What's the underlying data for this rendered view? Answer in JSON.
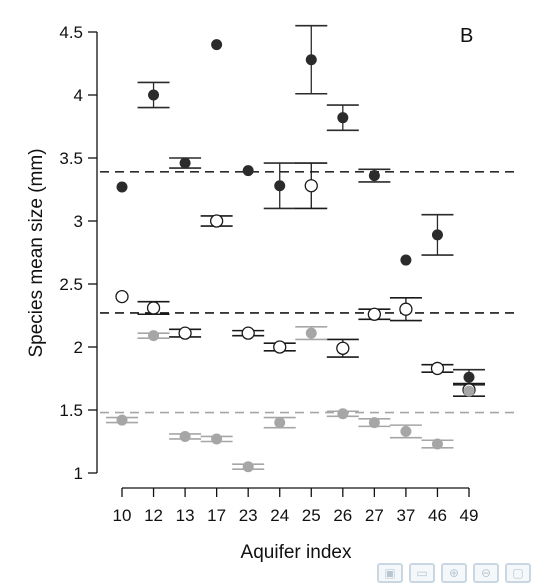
{
  "chart_data": {
    "type": "scatter",
    "panel_label": "B",
    "xlabel": "Aquifer index",
    "ylabel": "Species mean size (mm)",
    "categories": [
      "10",
      "12",
      "13",
      "17",
      "23",
      "24",
      "25",
      "26",
      "27",
      "37",
      "46",
      "49"
    ],
    "ylim": [
      1,
      4.5
    ],
    "yticks": [
      1,
      1.5,
      2,
      2.5,
      3,
      3.5,
      4,
      4.5
    ],
    "ytick_labels": [
      "1",
      "1.5",
      "2",
      "2.5",
      "3",
      "3.5",
      "4",
      "4.5"
    ],
    "grid": false,
    "legend": "none",
    "series": [
      {
        "style": "filled-black",
        "color": "#2b2b2b",
        "mean_line": 3.39,
        "points": [
          {
            "x": "10",
            "y": 3.27,
            "err": null
          },
          {
            "x": "12",
            "y": 4.0,
            "err": 0.1
          },
          {
            "x": "13",
            "y": 3.46,
            "err": 0.04
          },
          {
            "x": "17",
            "y": 4.4,
            "err": null
          },
          {
            "x": "23",
            "y": 3.4,
            "err": null
          },
          {
            "x": "24",
            "y": 3.28,
            "err": 0.18
          },
          {
            "x": "25",
            "y": 4.28,
            "err": 0.27
          },
          {
            "x": "26",
            "y": 3.82,
            "err": 0.1
          },
          {
            "x": "27",
            "y": 3.36,
            "err": 0.05
          },
          {
            "x": "37",
            "y": 2.69,
            "err": null
          },
          {
            "x": "46",
            "y": 2.89,
            "err": 0.16
          },
          {
            "x": "49",
            "y": 1.76,
            "err": 0.06
          }
        ]
      },
      {
        "style": "open-circle",
        "color": "#1a1a1a",
        "mean_line": 2.27,
        "points": [
          {
            "x": "10",
            "y": 2.4,
            "err": null
          },
          {
            "x": "12",
            "y": 2.31,
            "err": 0.05
          },
          {
            "x": "13",
            "y": 2.11,
            "err": 0.03
          },
          {
            "x": "17",
            "y": 3.0,
            "err": 0.04
          },
          {
            "x": "23",
            "y": 2.11,
            "err": 0.02
          },
          {
            "x": "24",
            "y": 2.0,
            "err": 0.03
          },
          {
            "x": "25",
            "y": 3.28,
            "err": 0.18
          },
          {
            "x": "26",
            "y": 1.99,
            "err": 0.07
          },
          {
            "x": "27",
            "y": 2.26,
            "err": 0.04
          },
          {
            "x": "37",
            "y": 2.3,
            "err": 0.09
          },
          {
            "x": "46",
            "y": 1.83,
            "err": 0.03
          },
          {
            "x": "49",
            "y": 1.66,
            "err": 0.05
          }
        ]
      },
      {
        "style": "filled-grey",
        "color": "#a6a6a6",
        "mean_line": 1.48,
        "points": [
          {
            "x": "10",
            "y": 1.42,
            "err": 0.02
          },
          {
            "x": "12",
            "y": 2.09,
            "err": 0.02
          },
          {
            "x": "13",
            "y": 1.29,
            "err": 0.02
          },
          {
            "x": "17",
            "y": 1.27,
            "err": 0.02
          },
          {
            "x": "23",
            "y": 1.05,
            "err": 0.02
          },
          {
            "x": "24",
            "y": 1.4,
            "err": 0.04
          },
          {
            "x": "25",
            "y": 2.11,
            "err": 0.05
          },
          {
            "x": "26",
            "y": 1.47,
            "err": 0.02
          },
          {
            "x": "27",
            "y": 1.4,
            "err": 0.03
          },
          {
            "x": "37",
            "y": 1.33,
            "err": 0.05
          },
          {
            "x": "46",
            "y": 1.23,
            "err": 0.03
          },
          {
            "x": "49",
            "y": 1.65,
            "err": null
          }
        ]
      }
    ]
  },
  "toolbar": {
    "items": [
      {
        "icon": "export-icon",
        "glyph": "▣"
      },
      {
        "icon": "pan-icon",
        "glyph": "▭"
      },
      {
        "icon": "zoom-in-icon",
        "glyph": "⊕"
      },
      {
        "icon": "zoom-out-icon",
        "glyph": "⊖"
      },
      {
        "icon": "fullscreen-icon",
        "glyph": "▢"
      }
    ]
  }
}
